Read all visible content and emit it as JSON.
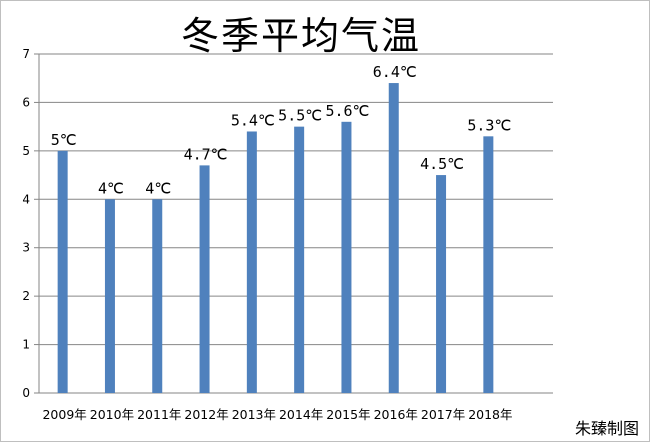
{
  "chart_data": {
    "type": "bar",
    "title": "冬季平均气温",
    "categories": [
      "2009年",
      "2010年",
      "2011年",
      "2012年",
      "2013年",
      "2014年",
      "2015年",
      "2016年",
      "2017年",
      "2018年"
    ],
    "values": [
      5,
      4,
      4,
      4.7,
      5.4,
      5.5,
      5.6,
      6.4,
      4.5,
      5.3
    ],
    "data_labels": [
      "5℃",
      "4℃",
      "4℃",
      "4.7℃",
      "5.4℃",
      "5.5℃",
      "5.6℃",
      "6.4℃",
      "4.5℃",
      "5.3℃"
    ],
    "y_ticks": [
      "0",
      "1",
      "2",
      "3",
      "4",
      "5",
      "6",
      "7"
    ],
    "ylim": [
      0,
      7
    ],
    "xlabel": "",
    "ylabel": "",
    "grid": "horizontal",
    "legend": "none",
    "bar_color": "#4f81bd",
    "grid_color": "#868686"
  },
  "credit": "朱臻制图"
}
